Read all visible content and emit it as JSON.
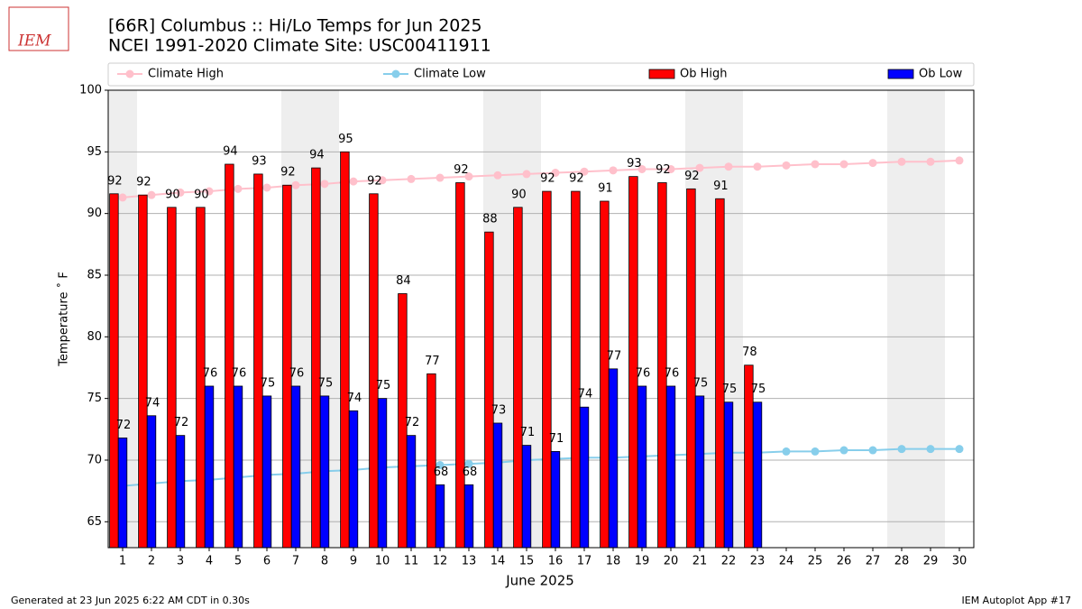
{
  "chart_data": {
    "type": "bar",
    "title": "[66R] Columbus :: Hi/Lo Temps for Jun 2025",
    "subtitle": "NCEI 1991-2020 Climate Site: USC00411911",
    "logo_text": "IEM",
    "ylabel": "Temperature $^\\circ$F",
    "xlabel": "June 2025",
    "footer_left": "Generated at 23 Jun 2025 6:22 AM CDT in 0.30s",
    "footer_right": "IEM Autoplot App #17",
    "x": [
      1,
      2,
      3,
      4,
      5,
      6,
      7,
      8,
      9,
      10,
      11,
      12,
      13,
      14,
      15,
      16,
      17,
      18,
      19,
      20,
      21,
      22,
      23,
      24,
      25,
      26,
      27,
      28,
      29,
      30
    ],
    "xlim": [
      0.5,
      30.5
    ],
    "xticks": [
      1,
      2,
      3,
      4,
      5,
      6,
      7,
      8,
      9,
      10,
      11,
      12,
      13,
      14,
      15,
      16,
      17,
      18,
      19,
      20,
      21,
      22,
      23,
      24,
      25,
      26,
      27,
      28,
      29,
      30
    ],
    "ylim": [
      62.9,
      100
    ],
    "yticks": [
      65,
      70,
      75,
      80,
      85,
      90,
      95,
      100
    ],
    "grid": true,
    "shaded_x": [
      1,
      7,
      8,
      14,
      15,
      21,
      22,
      28,
      29
    ],
    "shade_color": "#eeeeee",
    "series": [
      {
        "name": "Climate High",
        "kind": "line",
        "color": "pink",
        "values": [
          91.3,
          91.5,
          91.7,
          91.8,
          92.0,
          92.1,
          92.3,
          92.4,
          92.6,
          92.7,
          92.8,
          92.9,
          93.0,
          93.1,
          93.2,
          93.3,
          93.4,
          93.5,
          93.6,
          93.6,
          93.7,
          93.8,
          93.8,
          93.9,
          94.0,
          94.0,
          94.1,
          94.2,
          94.2,
          94.3
        ]
      },
      {
        "name": "Climate Low",
        "kind": "line",
        "color": "skyblue",
        "values": [
          67.9,
          68.1,
          68.3,
          68.4,
          68.6,
          68.8,
          68.9,
          69.1,
          69.2,
          69.4,
          69.5,
          69.6,
          69.7,
          69.8,
          70.0,
          70.1,
          70.2,
          70.2,
          70.3,
          70.4,
          70.5,
          70.6,
          70.6,
          70.7,
          70.7,
          70.8,
          70.8,
          70.9,
          70.9,
          70.9
        ]
      },
      {
        "name": "Ob High",
        "kind": "bar",
        "color": "red",
        "values": [
          91.6,
          91.5,
          90.5,
          90.5,
          94.0,
          93.2,
          92.3,
          93.7,
          95.0,
          91.6,
          83.5,
          77.0,
          92.5,
          88.5,
          90.5,
          91.8,
          91.8,
          91.0,
          93.0,
          92.5,
          92.0,
          91.2,
          77.7,
          null,
          null,
          null,
          null,
          null,
          null,
          null
        ],
        "value_labels": [
          "92",
          "92",
          "90",
          "90",
          "94",
          "93",
          "92",
          "94",
          "95",
          "92",
          "84",
          "77",
          "92",
          "88",
          "90",
          "92",
          "92",
          "91",
          "93",
          "92",
          "92",
          "91",
          "78",
          null,
          null,
          null,
          null,
          null,
          null,
          null
        ]
      },
      {
        "name": "Ob Low",
        "kind": "bar",
        "color": "blue",
        "values": [
          71.8,
          73.6,
          72.0,
          76.0,
          76.0,
          75.2,
          76.0,
          75.2,
          74.0,
          75.0,
          72.0,
          68.0,
          68.0,
          73.0,
          71.2,
          70.7,
          74.3,
          77.4,
          76.0,
          76.0,
          75.2,
          74.7,
          74.7,
          null,
          null,
          null,
          null,
          null,
          null,
          null
        ],
        "value_labels": [
          "72",
          "74",
          "72",
          "76",
          "76",
          "75",
          "76",
          "75",
          "74",
          "75",
          "72",
          "68",
          "68",
          "73",
          "71",
          "71",
          "74",
          "77",
          "76",
          "76",
          "75",
          "75",
          "75",
          null,
          null,
          null,
          null,
          null,
          null,
          null
        ]
      }
    ]
  }
}
